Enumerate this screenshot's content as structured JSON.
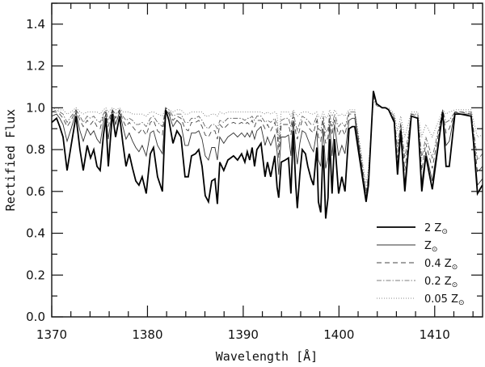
{
  "chart_data": {
    "type": "line",
    "title": "",
    "xlabel": "Wavelength [Å]",
    "ylabel": "Rectified Flux",
    "xlim": [
      1370,
      1415
    ],
    "ylim": [
      0.0,
      1.5
    ],
    "xticks": [
      1370,
      1380,
      1390,
      1400,
      1410
    ],
    "xtick_labels": [
      "1370",
      "1380",
      "1390",
      "1400",
      "1410"
    ],
    "yticks": [
      0.0,
      0.2,
      0.4,
      0.6,
      0.8,
      1.0,
      1.2,
      1.4
    ],
    "ytick_labels": [
      "0.0",
      "0.2",
      "0.4",
      "0.6",
      "0.8",
      "1.0",
      "1.2",
      "1.4"
    ],
    "x_minor_step": 2,
    "y_minor_step": 0.1,
    "grid": false,
    "legend_position": "lower right",
    "x": [
      1370.0,
      1370.51,
      1370.84,
      1371.18,
      1371.6,
      1372.03,
      1372.53,
      1372.95,
      1373.29,
      1373.71,
      1374.05,
      1374.39,
      1374.73,
      1375.06,
      1375.4,
      1375.65,
      1375.91,
      1376.33,
      1376.67,
      1377.09,
      1377.43,
      1377.76,
      1378.1,
      1378.44,
      1378.78,
      1379.11,
      1379.45,
      1379.87,
      1380.3,
      1380.63,
      1381.05,
      1381.56,
      1381.9,
      1382.24,
      1382.66,
      1383.08,
      1383.5,
      1383.92,
      1384.26,
      1384.6,
      1385.02,
      1385.36,
      1385.7,
      1386.03,
      1386.37,
      1386.71,
      1387.05,
      1387.3,
      1387.55,
      1387.97,
      1388.4,
      1388.99,
      1389.41,
      1389.83,
      1390.17,
      1390.42,
      1390.68,
      1390.93,
      1391.18,
      1391.43,
      1391.86,
      1392.28,
      1392.53,
      1392.87,
      1393.29,
      1393.54,
      1393.71,
      1393.97,
      1394.39,
      1394.73,
      1394.98,
      1395.23,
      1395.49,
      1395.65,
      1395.91,
      1396.16,
      1396.5,
      1396.75,
      1397.09,
      1397.34,
      1397.68,
      1397.85,
      1398.1,
      1398.35,
      1398.61,
      1398.86,
      1399.03,
      1399.28,
      1399.54,
      1399.96,
      1400.3,
      1400.63,
      1401.05,
      1401.39,
      1401.65,
      1402.57,
      1402.83,
      1403.08,
      1403.59,
      1403.92,
      1404.51,
      1404.85,
      1405.19,
      1405.78,
      1406.12,
      1406.46,
      1406.88,
      1407.55,
      1408.23,
      1408.65,
      1409.07,
      1409.75,
      1410.84,
      1411.18,
      1411.52,
      1412.11,
      1412.7,
      1413.8,
      1414.05,
      1414.47,
      1414.98
    ],
    "series": [
      {
        "name": "2 Z☉",
        "style": "solid-thick",
        "values": [
          0.93,
          0.95,
          0.91,
          0.86,
          0.7,
          0.82,
          0.96,
          0.8,
          0.7,
          0.82,
          0.76,
          0.8,
          0.72,
          0.7,
          0.87,
          0.95,
          0.72,
          0.97,
          0.86,
          0.96,
          0.83,
          0.72,
          0.78,
          0.71,
          0.65,
          0.63,
          0.67,
          0.59,
          0.78,
          0.81,
          0.67,
          0.6,
          0.99,
          0.94,
          0.83,
          0.89,
          0.86,
          0.67,
          0.67,
          0.77,
          0.78,
          0.8,
          0.72,
          0.58,
          0.55,
          0.65,
          0.66,
          0.54,
          0.74,
          0.7,
          0.75,
          0.77,
          0.75,
          0.78,
          0.74,
          0.79,
          0.75,
          0.81,
          0.72,
          0.8,
          0.83,
          0.67,
          0.74,
          0.67,
          0.77,
          0.62,
          0.57,
          0.74,
          0.75,
          0.76,
          0.59,
          0.89,
          0.63,
          0.52,
          0.68,
          0.8,
          0.78,
          0.72,
          0.66,
          0.63,
          0.81,
          0.55,
          0.5,
          0.82,
          0.47,
          0.57,
          0.85,
          0.59,
          0.85,
          0.59,
          0.67,
          0.6,
          0.9,
          0.91,
          0.91,
          0.63,
          0.55,
          0.63,
          1.08,
          1.02,
          1.0,
          1.0,
          0.99,
          0.93,
          0.68,
          0.89,
          0.6,
          0.96,
          0.95,
          0.6,
          0.77,
          0.61,
          0.98,
          0.72,
          0.72,
          0.97,
          0.97,
          0.96,
          0.84,
          0.59,
          0.63
        ]
      },
      {
        "name": "Z☉",
        "style": "solid-thin",
        "values": [
          0.96,
          0.97,
          0.95,
          0.92,
          0.84,
          0.9,
          0.98,
          0.89,
          0.84,
          0.9,
          0.87,
          0.89,
          0.85,
          0.83,
          0.93,
          0.97,
          0.85,
          0.99,
          0.92,
          0.98,
          0.91,
          0.85,
          0.88,
          0.84,
          0.81,
          0.79,
          0.82,
          0.77,
          0.88,
          0.89,
          0.82,
          0.78,
          0.99,
          0.97,
          0.91,
          0.94,
          0.92,
          0.82,
          0.82,
          0.88,
          0.88,
          0.89,
          0.85,
          0.77,
          0.75,
          0.81,
          0.81,
          0.75,
          0.86,
          0.83,
          0.86,
          0.88,
          0.86,
          0.88,
          0.86,
          0.88,
          0.86,
          0.89,
          0.85,
          0.89,
          0.91,
          0.82,
          0.86,
          0.82,
          0.87,
          0.79,
          0.68,
          0.86,
          0.86,
          0.87,
          0.77,
          0.94,
          0.79,
          0.73,
          0.83,
          0.89,
          0.88,
          0.85,
          0.81,
          0.79,
          0.89,
          0.75,
          0.72,
          0.9,
          0.71,
          0.76,
          0.92,
          0.77,
          0.92,
          0.77,
          0.82,
          0.78,
          0.94,
          0.95,
          0.95,
          0.65,
          0.57,
          0.65,
          1.07,
          1.02,
          1.0,
          1.0,
          0.99,
          0.94,
          0.72,
          0.9,
          0.64,
          0.96,
          0.95,
          0.64,
          0.79,
          0.65,
          0.98,
          0.82,
          0.84,
          0.98,
          0.97,
          0.97,
          0.86,
          0.63,
          0.66
        ]
      },
      {
        "name": "0.4 Z☉",
        "style": "dashed",
        "values": [
          0.98,
          0.98,
          0.97,
          0.95,
          0.91,
          0.94,
          0.99,
          0.94,
          0.91,
          0.94,
          0.92,
          0.94,
          0.91,
          0.9,
          0.96,
          0.98,
          0.91,
          0.99,
          0.95,
          0.99,
          0.94,
          0.91,
          0.93,
          0.91,
          0.89,
          0.88,
          0.9,
          0.87,
          0.93,
          0.94,
          0.89,
          0.87,
          1.0,
          0.98,
          0.94,
          0.96,
          0.95,
          0.9,
          0.89,
          0.93,
          0.93,
          0.94,
          0.91,
          0.87,
          0.86,
          0.89,
          0.89,
          0.85,
          0.92,
          0.9,
          0.92,
          0.93,
          0.92,
          0.93,
          0.92,
          0.93,
          0.92,
          0.94,
          0.91,
          0.94,
          0.94,
          0.9,
          0.92,
          0.89,
          0.93,
          0.88,
          0.76,
          0.92,
          0.92,
          0.92,
          0.87,
          0.96,
          0.88,
          0.85,
          0.9,
          0.94,
          0.93,
          0.91,
          0.89,
          0.88,
          0.94,
          0.86,
          0.84,
          0.94,
          0.83,
          0.86,
          0.95,
          0.87,
          0.95,
          0.87,
          0.9,
          0.87,
          0.97,
          0.97,
          0.97,
          0.66,
          0.59,
          0.66,
          1.06,
          1.02,
          1.0,
          1.0,
          0.99,
          0.95,
          0.76,
          0.92,
          0.7,
          0.97,
          0.96,
          0.7,
          0.83,
          0.71,
          0.99,
          0.88,
          0.9,
          0.98,
          0.98,
          0.97,
          0.88,
          0.69,
          0.72
        ]
      },
      {
        "name": "0.2 Z☉",
        "style": "dash-dot",
        "values": [
          0.98,
          0.99,
          0.98,
          0.97,
          0.93,
          0.96,
          0.99,
          0.96,
          0.93,
          0.96,
          0.95,
          0.96,
          0.94,
          0.93,
          0.97,
          0.99,
          0.94,
          0.99,
          0.97,
          0.99,
          0.96,
          0.94,
          0.95,
          0.94,
          0.92,
          0.92,
          0.93,
          0.91,
          0.95,
          0.96,
          0.93,
          0.91,
          1.0,
          0.99,
          0.96,
          0.97,
          0.97,
          0.93,
          0.93,
          0.95,
          0.95,
          0.96,
          0.94,
          0.91,
          0.9,
          0.92,
          0.92,
          0.9,
          0.94,
          0.93,
          0.95,
          0.95,
          0.95,
          0.95,
          0.94,
          0.95,
          0.95,
          0.96,
          0.94,
          0.96,
          0.96,
          0.93,
          0.94,
          0.93,
          0.95,
          0.92,
          0.81,
          0.94,
          0.95,
          0.95,
          0.91,
          0.98,
          0.92,
          0.89,
          0.93,
          0.96,
          0.95,
          0.94,
          0.92,
          0.92,
          0.96,
          0.9,
          0.89,
          0.96,
          0.88,
          0.9,
          0.97,
          0.91,
          0.97,
          0.91,
          0.93,
          0.91,
          0.98,
          0.98,
          0.98,
          0.68,
          0.6,
          0.68,
          1.05,
          1.01,
          1.0,
          1.0,
          0.99,
          0.96,
          0.81,
          0.93,
          0.76,
          0.97,
          0.97,
          0.76,
          0.86,
          0.76,
          0.99,
          0.93,
          0.94,
          0.98,
          0.98,
          0.98,
          0.9,
          0.75,
          0.78
        ]
      },
      {
        "name": "0.05 Z☉",
        "style": "dotted",
        "values": [
          0.99,
          1.0,
          0.99,
          0.99,
          0.97,
          0.98,
          1.0,
          0.98,
          0.97,
          0.98,
          0.98,
          0.98,
          0.98,
          0.97,
          0.99,
          1.0,
          0.98,
          1.0,
          0.99,
          1.0,
          0.98,
          0.98,
          0.98,
          0.97,
          0.97,
          0.97,
          0.97,
          0.96,
          0.98,
          0.98,
          0.97,
          0.96,
          1.0,
          0.99,
          0.98,
          0.99,
          0.99,
          0.97,
          0.97,
          0.98,
          0.98,
          0.98,
          0.98,
          0.96,
          0.96,
          0.97,
          0.97,
          0.96,
          0.98,
          0.97,
          0.98,
          0.98,
          0.98,
          0.98,
          0.98,
          0.98,
          0.98,
          0.98,
          0.98,
          0.98,
          0.98,
          0.97,
          0.98,
          0.97,
          0.98,
          0.97,
          0.85,
          0.98,
          0.98,
          0.98,
          0.96,
          0.99,
          0.97,
          0.96,
          0.97,
          0.98,
          0.98,
          0.98,
          0.97,
          0.97,
          0.98,
          0.96,
          0.95,
          0.98,
          0.95,
          0.96,
          0.99,
          0.96,
          0.99,
          0.96,
          0.97,
          0.96,
          0.99,
          0.99,
          0.99,
          0.71,
          0.64,
          0.71,
          1.03,
          1.01,
          1.0,
          1.0,
          1.0,
          0.97,
          0.89,
          0.96,
          0.86,
          0.98,
          0.98,
          0.86,
          0.92,
          0.86,
          0.99,
          0.97,
          0.98,
          0.99,
          0.99,
          0.99,
          0.94,
          0.86,
          0.87
        ]
      }
    ]
  },
  "legend": {
    "items": [
      {
        "label_main": "2 Z",
        "label_sym": "⊙"
      },
      {
        "label_main": "Z",
        "label_sym": "⊙"
      },
      {
        "label_main": "0.4 Z",
        "label_sym": "⊙"
      },
      {
        "label_main": "0.2 Z",
        "label_sym": "⊙"
      },
      {
        "label_main": "0.05 Z",
        "label_sym": "⊙"
      }
    ]
  },
  "axes": {
    "xlabel": "Wavelength [Å]",
    "ylabel": "Rectified Flux"
  }
}
